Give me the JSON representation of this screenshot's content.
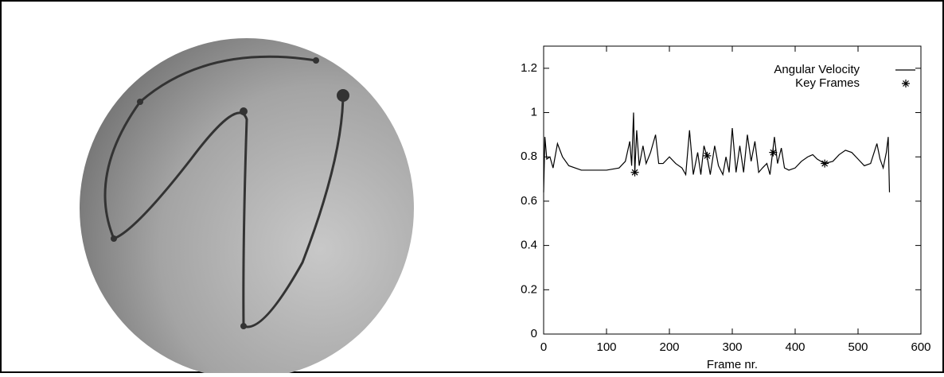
{
  "chart_data": {
    "type": "line",
    "xlabel": "Frame nr.",
    "xlim": [
      0,
      600
    ],
    "xticks": [
      0,
      100,
      200,
      300,
      400,
      500,
      600
    ],
    "ylim": [
      0,
      1.3
    ],
    "yticks": [
      0,
      0.2,
      0.4,
      0.6,
      0.8,
      1,
      1.2
    ],
    "legend": "top-right",
    "series": [
      {
        "name": "Angular Velocity",
        "color": "#000000",
        "marker": "line",
        "x": [
          0,
          2,
          5,
          10,
          15,
          22,
          30,
          40,
          60,
          80,
          100,
          120,
          130,
          137,
          140,
          143,
          145,
          148,
          152,
          158,
          163,
          170,
          178,
          183,
          190,
          200,
          210,
          220,
          226,
          232,
          238,
          245,
          250,
          255,
          260,
          265,
          272,
          278,
          285,
          290,
          295,
          300,
          306,
          312,
          318,
          324,
          330,
          336,
          342,
          348,
          355,
          360,
          367,
          372,
          378,
          383,
          390,
          400,
          410,
          420,
          428,
          435,
          447,
          460,
          470,
          480,
          490,
          500,
          510,
          520,
          530,
          535,
          540,
          545,
          548,
          550
        ],
        "values": [
          0.64,
          0.89,
          0.79,
          0.8,
          0.75,
          0.86,
          0.8,
          0.76,
          0.74,
          0.74,
          0.74,
          0.75,
          0.78,
          0.87,
          0.76,
          1.0,
          0.73,
          0.92,
          0.76,
          0.85,
          0.77,
          0.82,
          0.9,
          0.77,
          0.77,
          0.8,
          0.77,
          0.75,
          0.72,
          0.92,
          0.72,
          0.82,
          0.72,
          0.85,
          0.8,
          0.72,
          0.85,
          0.76,
          0.72,
          0.8,
          0.73,
          0.93,
          0.73,
          0.85,
          0.73,
          0.9,
          0.78,
          0.87,
          0.73,
          0.75,
          0.77,
          0.72,
          0.89,
          0.77,
          0.84,
          0.75,
          0.74,
          0.75,
          0.78,
          0.8,
          0.81,
          0.79,
          0.77,
          0.78,
          0.81,
          0.83,
          0.82,
          0.79,
          0.76,
          0.77,
          0.86,
          0.79,
          0.75,
          0.82,
          0.89,
          0.64
        ]
      },
      {
        "name": "Key Frames",
        "color": "#000000",
        "marker": "star",
        "x": [
          145,
          260,
          365,
          447
        ],
        "values": [
          0.73,
          0.805,
          0.82,
          0.77
        ]
      }
    ]
  }
}
